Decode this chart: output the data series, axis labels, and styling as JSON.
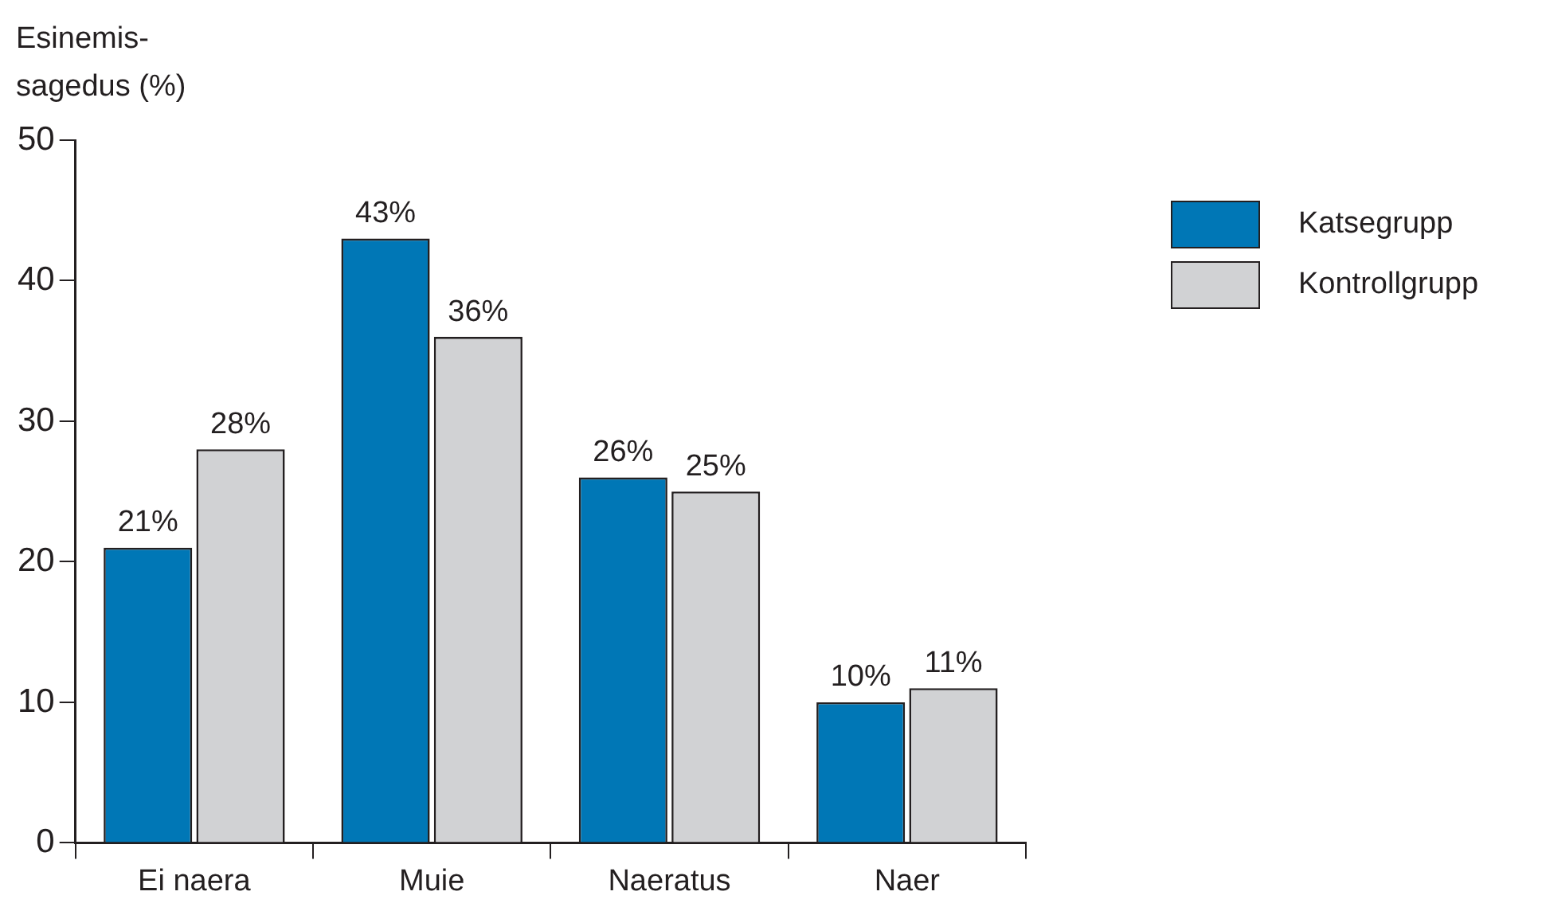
{
  "chart_data": {
    "type": "bar",
    "ylabel": "Esinemis-\nsagedus (%)",
    "categories": [
      "Ei naera",
      "Muie",
      "Naeratus",
      "Naer"
    ],
    "series": [
      {
        "name": "Katsegrupp",
        "color": "#0077b6",
        "values": [
          21,
          43,
          26,
          10
        ],
        "value_labels": [
          "21%",
          "43%",
          "26%",
          "10%"
        ]
      },
      {
        "name": "Kontrollgrupp",
        "color": "#d1d2d4",
        "values": [
          28,
          36,
          25,
          11
        ],
        "value_labels": [
          "28%",
          "36%",
          "25%",
          "11%"
        ]
      }
    ],
    "ylim": [
      0,
      50
    ],
    "yticks": [
      0,
      10,
      20,
      30,
      40,
      50
    ],
    "legend": "top right"
  }
}
